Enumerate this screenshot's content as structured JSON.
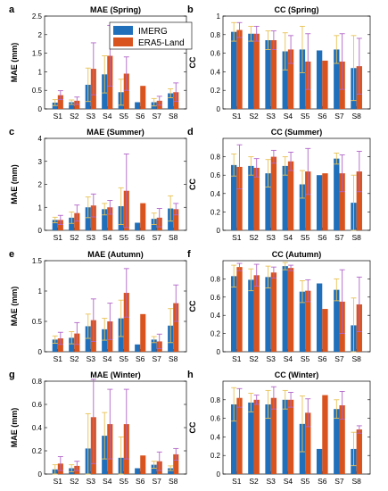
{
  "legend": {
    "items": [
      {
        "name": "IMERG",
        "color": "#1f6fba"
      },
      {
        "name": "ERA5-Land",
        "color": "#d9531e"
      }
    ],
    "placement": "top-right of panel a"
  },
  "colors": {
    "imerg": "#1f6fba",
    "era5": "#d9531e",
    "err_imerg": "#e8c254",
    "err_era5": "#b266c8"
  },
  "chart_data": [
    {
      "type": "bar",
      "letter": "a",
      "title": "MAE (Spring)",
      "ylabel": "MAE (mm)",
      "categories": [
        "S1",
        "S2",
        "S3",
        "S4",
        "S5",
        "S6",
        "S7",
        "S8"
      ],
      "ylim": [
        0,
        2.5
      ],
      "yticks": [
        "0",
        "0.5",
        "1",
        "1.5",
        "2",
        "2.5"
      ],
      "yticks_values": [
        0,
        0.5,
        1,
        1.5,
        2,
        2.5
      ],
      "series": [
        {
          "name": "IMERG",
          "values": [
            0.17,
            0.18,
            0.65,
            0.93,
            0.45,
            0.18,
            0.18,
            0.42
          ],
          "err": [
            0.08,
            0.06,
            0.45,
            0.5,
            0.35,
            0,
            0.1,
            0.12
          ]
        },
        {
          "name": "ERA5-Land",
          "values": [
            0.37,
            0.22,
            1.08,
            1.43,
            0.95,
            0.62,
            0.22,
            0.45
          ],
          "err": [
            0.12,
            0.1,
            0.7,
            0.82,
            0.45,
            0,
            0.12,
            0.25
          ]
        }
      ]
    },
    {
      "type": "bar",
      "letter": "b",
      "title": "CC (Spring)",
      "ylabel": "CC",
      "categories": [
        "S1",
        "S2",
        "S3",
        "S4",
        "S5",
        "S6",
        "S7",
        "S8"
      ],
      "ylim": [
        0,
        1
      ],
      "yticks": [
        "0",
        "0.2",
        "0.4",
        "0.6",
        "0.8",
        "1"
      ],
      "yticks_values": [
        0,
        0.2,
        0.4,
        0.6,
        0.8,
        1
      ],
      "series": [
        {
          "name": "IMERG",
          "values": [
            0.83,
            0.81,
            0.74,
            0.62,
            0.64,
            0.63,
            0.64,
            0.44
          ],
          "err": [
            0.1,
            0.08,
            0.1,
            0.2,
            0.25,
            0,
            0.15,
            0.35
          ]
        },
        {
          "name": "ERA5-Land",
          "values": [
            0.85,
            0.81,
            0.74,
            0.64,
            0.51,
            0.52,
            0.51,
            0.46
          ],
          "err": [
            0.08,
            0.08,
            0.1,
            0.15,
            0.3,
            0,
            0.3,
            0.3
          ]
        }
      ]
    },
    {
      "type": "bar",
      "letter": "c",
      "title": "MAE (Summer)",
      "ylabel": "MAE (mm)",
      "categories": [
        "S1",
        "S2",
        "S3",
        "S4",
        "S5",
        "S6",
        "S7",
        "S8"
      ],
      "ylim": [
        0,
        4
      ],
      "yticks": [
        "0",
        "1",
        "2",
        "3",
        "4"
      ],
      "yticks_values": [
        0,
        1,
        2,
        3,
        4
      ],
      "series": [
        {
          "name": "IMERG",
          "values": [
            0.45,
            0.55,
            1.0,
            0.92,
            1.05,
            0.33,
            0.5,
            0.95
          ],
          "err": [
            0.12,
            0.25,
            0.45,
            0.25,
            0.8,
            0,
            0.25,
            0.55
          ]
        },
        {
          "name": "ERA5-Land",
          "values": [
            0.45,
            0.75,
            1.08,
            1.0,
            1.72,
            1.18,
            0.55,
            0.92
          ],
          "err": [
            0.2,
            0.35,
            0.5,
            0.3,
            1.6,
            0,
            0.4,
            0.25
          ]
        }
      ]
    },
    {
      "type": "bar",
      "letter": "d",
      "title": "CC (Summer)",
      "ylabel": "CC",
      "categories": [
        "S1",
        "S2",
        "S3",
        "S4",
        "S5",
        "S6",
        "S7",
        "S8"
      ],
      "ylim": [
        0,
        1
      ],
      "yticks": [
        "0",
        "0.2",
        "0.4",
        "0.6",
        "0.8"
      ],
      "yticks_values": [
        0,
        0.2,
        0.4,
        0.6,
        0.8
      ],
      "series": [
        {
          "name": "IMERG",
          "values": [
            0.71,
            0.7,
            0.62,
            0.7,
            0.5,
            0.6,
            0.78,
            0.3
          ],
          "err": [
            0.12,
            0.1,
            0.15,
            0.1,
            0.15,
            0,
            0.06,
            0.3
          ]
        },
        {
          "name": "ERA5-Land",
          "values": [
            0.69,
            0.68,
            0.8,
            0.75,
            0.64,
            0.62,
            0.62,
            0.64
          ],
          "err": [
            0.24,
            0.1,
            0.07,
            0.1,
            0.25,
            0,
            0.2,
            0.22
          ]
        }
      ]
    },
    {
      "type": "bar",
      "letter": "e",
      "title": "MAE (Autumn)",
      "ylabel": "MAE (mm)",
      "categories": [
        "S1",
        "S2",
        "S3",
        "S4",
        "S5",
        "S6",
        "S7",
        "S8"
      ],
      "ylim": [
        0,
        1.5
      ],
      "yticks": [
        "0",
        "0.5",
        "1",
        "1.5"
      ],
      "yticks_values": [
        0,
        0.5,
        1,
        1.5
      ],
      "series": [
        {
          "name": "IMERG",
          "values": [
            0.2,
            0.23,
            0.42,
            0.37,
            0.55,
            0.12,
            0.2,
            0.43
          ],
          "err": [
            0.06,
            0.1,
            0.2,
            0.18,
            0.3,
            0,
            0.05,
            0.28
          ]
        },
        {
          "name": "ERA5-Land",
          "values": [
            0.22,
            0.3,
            0.52,
            0.5,
            0.97,
            0.62,
            0.17,
            0.8
          ],
          "err": [
            0.1,
            0.18,
            0.35,
            0.3,
            0.4,
            0,
            0.12,
            0.3
          ]
        }
      ]
    },
    {
      "type": "bar",
      "letter": "f",
      "title": "CC (Autumn)",
      "ylabel": "CC",
      "categories": [
        "S1",
        "S2",
        "S3",
        "S4",
        "S5",
        "S6",
        "S7",
        "S8"
      ],
      "ylim": [
        0,
        1
      ],
      "yticks": [
        "0",
        "0.2",
        "0.4",
        "0.6",
        "0.8"
      ],
      "yticks_values": [
        0,
        0.2,
        0.4,
        0.6,
        0.8
      ],
      "series": [
        {
          "name": "IMERG",
          "values": [
            0.83,
            0.79,
            0.82,
            0.94,
            0.66,
            0.75,
            0.68,
            0.29
          ],
          "err": [
            0.12,
            0.12,
            0.12,
            0.04,
            0.12,
            0,
            0.12,
            0.3
          ]
        },
        {
          "name": "ERA5-Land",
          "values": [
            0.93,
            0.84,
            0.87,
            0.92,
            0.67,
            0.47,
            0.55,
            0.52
          ],
          "err": [
            0.04,
            0.12,
            0.06,
            0.03,
            0.12,
            0,
            0.35,
            0.3
          ]
        }
      ]
    },
    {
      "type": "bar",
      "letter": "g",
      "title": "MAE (Winter)",
      "ylabel": "MAE (mm)",
      "categories": [
        "S1",
        "S2",
        "S3",
        "S4",
        "S5",
        "S6",
        "S7",
        "S8"
      ],
      "ylim": [
        0,
        0.8
      ],
      "yticks": [
        "0",
        "0.2",
        "0.4",
        "0.6",
        "0.8"
      ],
      "yticks_values": [
        0,
        0.2,
        0.4,
        0.6,
        0.8
      ],
      "series": [
        {
          "name": "IMERG",
          "values": [
            0.04,
            0.05,
            0.22,
            0.33,
            0.14,
            0.05,
            0.08,
            0.05
          ],
          "err": [
            0.04,
            0.03,
            0.3,
            0.2,
            0.18,
            0,
            0.03,
            0.02
          ]
        },
        {
          "name": "ERA5-Land",
          "values": [
            0.09,
            0.07,
            0.49,
            0.43,
            0.43,
            0.16,
            0.11,
            0.17
          ],
          "err": [
            0.06,
            0.04,
            0.4,
            0.3,
            0.3,
            0,
            0.08,
            0.05
          ]
        }
      ]
    },
    {
      "type": "bar",
      "letter": "h",
      "title": "CC (Winter)",
      "ylabel": "CC",
      "categories": [
        "S1",
        "S2",
        "S3",
        "S4",
        "S5",
        "S6",
        "S7",
        "S8"
      ],
      "ylim": [
        0,
        1
      ],
      "yticks": [
        "0",
        "0.2",
        "0.4",
        "0.6",
        "0.8"
      ],
      "yticks_values": [
        0,
        0.2,
        0.4,
        0.6,
        0.8
      ],
      "series": [
        {
          "name": "IMERG",
          "values": [
            0.75,
            0.77,
            0.75,
            0.8,
            0.54,
            0.27,
            0.7,
            0.27
          ],
          "err": [
            0.18,
            0.1,
            0.15,
            0.1,
            0.3,
            0,
            0.1,
            0.18
          ]
        },
        {
          "name": "ERA5-Land",
          "values": [
            0.82,
            0.8,
            0.82,
            0.8,
            0.66,
            0.85,
            0.74,
            0.48
          ],
          "err": [
            0.1,
            0.05,
            0.12,
            0.08,
            0.15,
            0,
            0.15,
            0.04
          ]
        }
      ]
    }
  ]
}
